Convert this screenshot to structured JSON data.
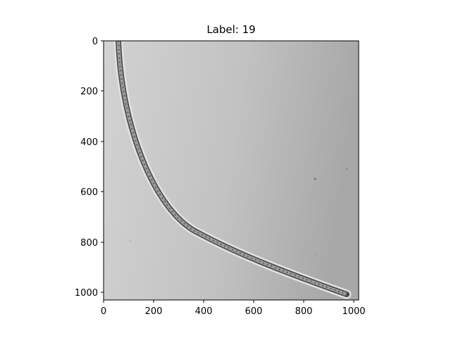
{
  "figure": {
    "title": "Label: 19",
    "x_ticks": [
      "0",
      "200",
      "400",
      "600",
      "800",
      "1000"
    ],
    "y_ticks": [
      "0",
      "200",
      "400",
      "600",
      "800",
      "1000"
    ]
  },
  "image": {
    "subject": "filamentous-algae-chain",
    "width_units": 1024,
    "height_units": 1024,
    "colors": {
      "background_left": "#cfcfcf",
      "background_right": "#a9a9a9",
      "filament_dark": "#3a3a3a",
      "filament_mid": "#6e6e6e",
      "filament_light": "#bdbdbd"
    }
  }
}
